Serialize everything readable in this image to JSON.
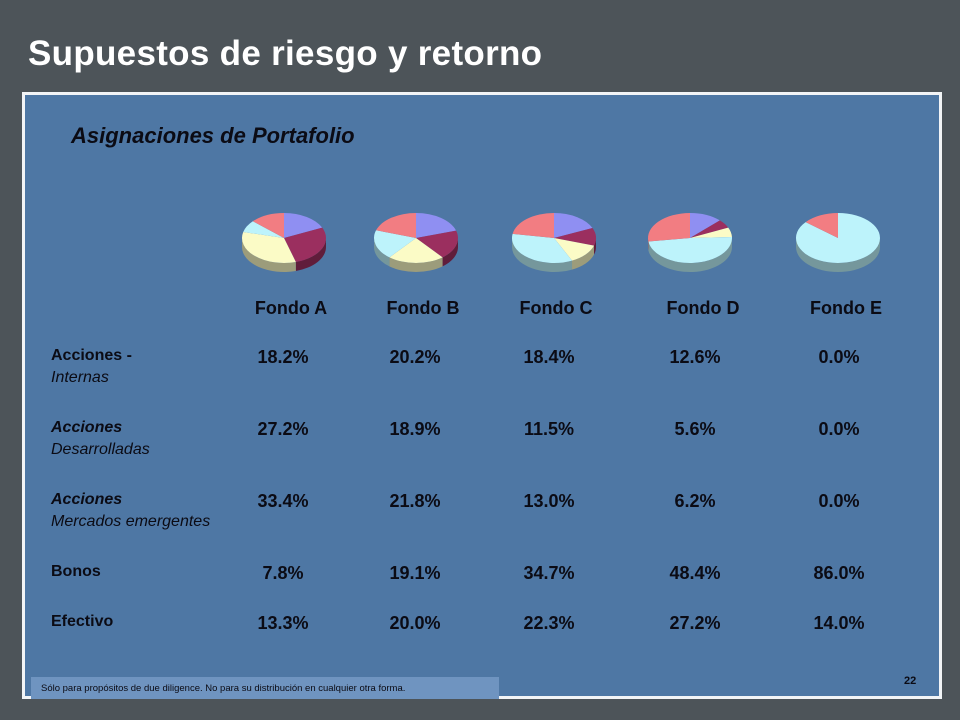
{
  "slide": {
    "title": "Supuestos de riesgo y retorno",
    "subtitle": "Asignaciones de Portafolio",
    "footer": "Sólo para propósitos de due diligence.  No para su distribución en cualquier otra forma.",
    "page_number": "22"
  },
  "colors": {
    "Acciones - Internas": "#8f8ff2",
    "Acciones Desarrolladas": "#9b2f5f",
    "Acciones Mercados emergentes": "#fbfbc6",
    "Bonos": "#bdf3fb",
    "Efectivo": "#f27d82"
  },
  "chart_data": {
    "type": "pie",
    "categories": [
      "Fondo A",
      "Fondo B",
      "Fondo C",
      "Fondo D",
      "Fondo E"
    ],
    "rows": [
      {
        "label_line1": "Acciones -",
        "label_line2": "Internas",
        "values": [
          "18.2%",
          "20.2%",
          "18.4%",
          "12.6%",
          "0.0%"
        ]
      },
      {
        "label_line1": "Acciones",
        "label_line2": "Desarrolladas",
        "values": [
          "27.2%",
          "18.9%",
          "11.5%",
          "5.6%",
          "0.0%"
        ]
      },
      {
        "label_line1": "Acciones",
        "label_line2": "Mercados emergentes",
        "values": [
          "33.4%",
          "21.8%",
          "13.0%",
          "6.2%",
          "0.0%"
        ]
      },
      {
        "label_line1": "Bonos",
        "label_line2": "",
        "values": [
          "7.8%",
          "19.1%",
          "34.7%",
          "48.4%",
          "86.0%"
        ]
      },
      {
        "label_line1": "Efectivo",
        "label_line2": "",
        "values": [
          "13.3%",
          "20.0%",
          "22.3%",
          "27.2%",
          "14.0%"
        ]
      }
    ]
  }
}
